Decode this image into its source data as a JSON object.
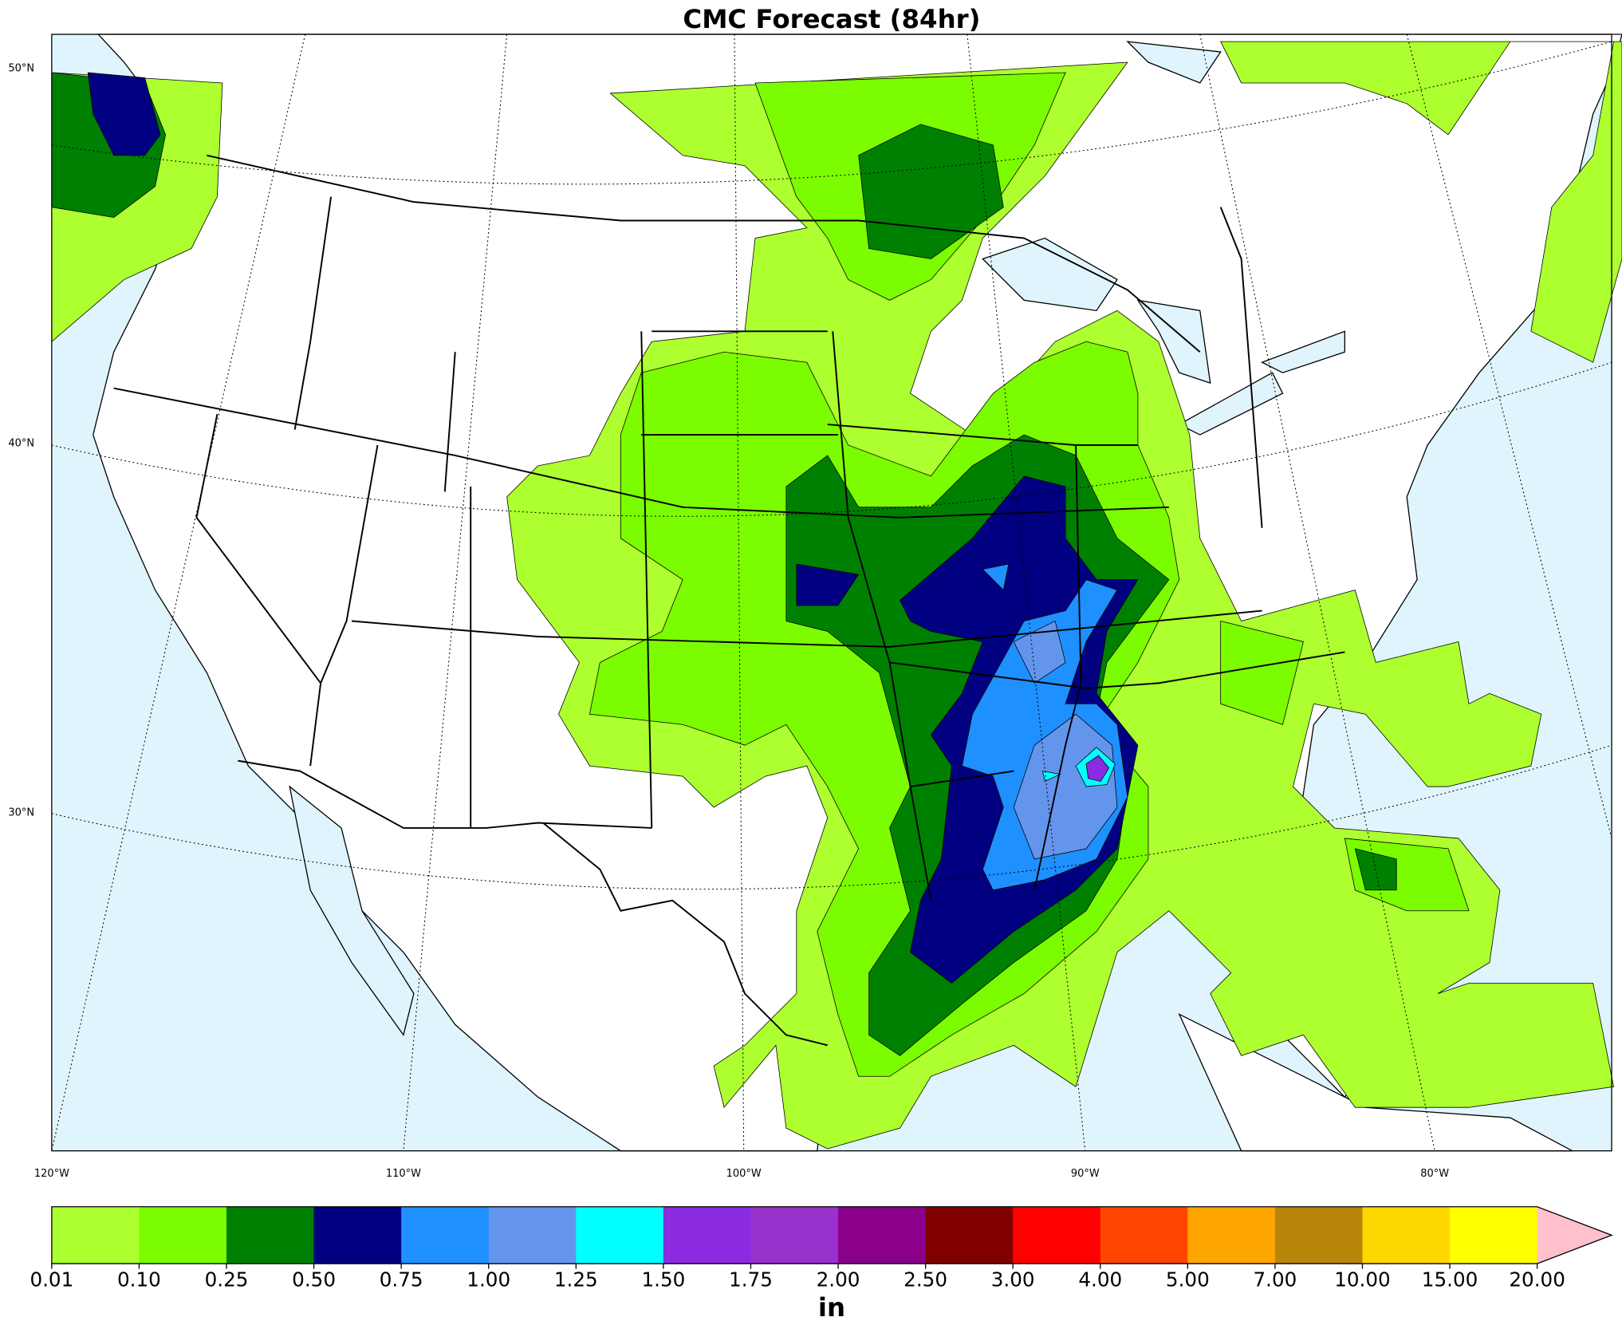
{
  "title": "CMC Forecast (84hr)",
  "map": {
    "lat_labels": [
      "50°N",
      "40°N",
      "30°N"
    ],
    "lon_labels": [
      "120°W",
      "110°W",
      "100°W",
      "90°W",
      "80°W"
    ]
  },
  "colorbar": {
    "levels": [
      0.01,
      {
        "value": 0.1,
        "label": "0.10"
      },
      0.25,
      {
        "value": 0.5,
        "label": "0.50"
      },
      0.75,
      {
        "value": 1,
        "label": "1.00"
      },
      1.25,
      {
        "value": 1.5,
        "label": "1.50"
      },
      1.75,
      {
        "value": 2,
        "label": "2.00"
      },
      {
        "value": 2.5,
        "label": "2.50"
      },
      {
        "value": 3,
        "label": "3.00"
      },
      {
        "value": 4,
        "label": "4.00"
      },
      {
        "value": 5,
        "label": "5.00"
      },
      {
        "value": 7,
        "label": "7.00"
      },
      {
        "value": 10,
        "label": "10.00"
      },
      {
        "value": 15,
        "label": "15.00"
      },
      {
        "value": 20,
        "label": "20.00"
      }
    ],
    "colors": [
      "#adff2f",
      "#7cfc00",
      "#008000",
      "#000080",
      "#1e90ff",
      "#6495ed",
      "#00ffff",
      "#8a2be2",
      "#9932cc",
      "#8b008b",
      "#800000",
      "#ff0000",
      "#ff4500",
      "#ffa500",
      "#b8860b",
      "#ffd700",
      "#ffff00"
    ],
    "extend_color": "#ffc0cb",
    "unit": "in"
  }
}
